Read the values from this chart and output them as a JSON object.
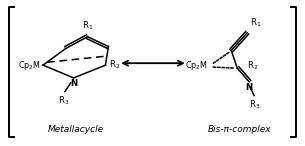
{
  "white": "#ffffff",
  "black": "#000000",
  "label_metallacycle": "Metallacycle",
  "label_bis": "Bis-π-complex",
  "figsize": [
    3.05,
    1.46
  ],
  "dpi": 100,
  "lw": 1.1,
  "lw_bracket": 1.4,
  "fs_main": 6.2,
  "fs_cp": 5.8,
  "fs_italic": 6.5
}
